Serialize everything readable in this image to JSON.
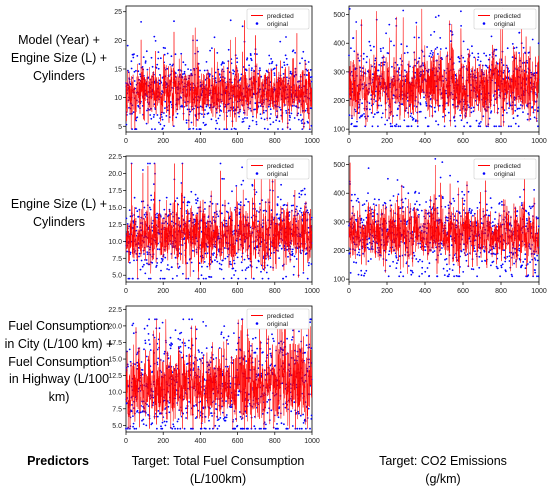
{
  "row_labels": [
    "Model (Year) + Engine Size (L) + Cylinders",
    "Engine Size (L) + Cylinders",
    "Fuel Consumption in City (L/100 km) + Fuel Consumption in Highway (L/100 km)"
  ],
  "bottom": {
    "predictors": "Predictors",
    "target_fuel": "Target: Total Fuel Consumption (L/100km)",
    "target_co2": "Target: CO2 Emissions (g/km)"
  },
  "legend": {
    "predicted": "predicted",
    "original": "original"
  },
  "colors": {
    "predicted": "#ff0000",
    "original": "#0000ff"
  },
  "chart_data": [
    {
      "type": "line",
      "id": "fuel-row1",
      "series_names": [
        "predicted",
        "original"
      ],
      "xlim": [
        0,
        1000
      ],
      "ylim": [
        4,
        26
      ],
      "xticks": [
        0,
        200,
        400,
        600,
        800,
        1000
      ],
      "yticks": [
        5,
        10,
        15,
        20,
        25
      ],
      "tick_labels_y": [
        "5",
        "10",
        "15",
        "20",
        "25"
      ],
      "n_points": 1000,
      "mean": 11,
      "spread": 2.4,
      "min": 4.5,
      "max": 23.5,
      "legend_position": "top-right",
      "grid": false
    },
    {
      "type": "line",
      "id": "co2-row1",
      "series_names": [
        "predicted",
        "original"
      ],
      "xlim": [
        0,
        1000
      ],
      "ylim": [
        90,
        530
      ],
      "xticks": [
        0,
        200,
        400,
        600,
        800,
        1000
      ],
      "yticks": [
        100,
        200,
        300,
        400,
        500
      ],
      "tick_labels_y": [
        "100",
        "200",
        "300",
        "400",
        "500"
      ],
      "n_points": 1000,
      "mean": 250,
      "spread": 55,
      "min": 110,
      "max": 520,
      "legend_position": "top-right",
      "grid": false
    },
    {
      "type": "line",
      "id": "fuel-row2",
      "series_names": [
        "predicted",
        "original"
      ],
      "xlim": [
        0,
        1000
      ],
      "ylim": [
        4,
        22.6
      ],
      "xticks": [
        0,
        200,
        400,
        600,
        800,
        1000
      ],
      "yticks": [
        5.0,
        7.5,
        10.0,
        12.5,
        15.0,
        17.5,
        20.0,
        22.5
      ],
      "tick_labels_y": [
        "5.0",
        "7.5",
        "10.0",
        "12.5",
        "15.0",
        "17.5",
        "20.0",
        "22.5"
      ],
      "n_points": 1000,
      "mean": 11,
      "spread": 2.3,
      "min": 4.5,
      "max": 21.5,
      "legend_position": "top-right",
      "grid": false
    },
    {
      "type": "line",
      "id": "co2-row2",
      "series_names": [
        "predicted",
        "original"
      ],
      "xlim": [
        0,
        1000
      ],
      "ylim": [
        90,
        530
      ],
      "xticks": [
        0,
        200,
        400,
        600,
        800,
        1000
      ],
      "yticks": [
        100,
        200,
        300,
        400,
        500
      ],
      "tick_labels_y": [
        "100",
        "200",
        "300",
        "400",
        "500"
      ],
      "n_points": 1000,
      "mean": 255,
      "spread": 50,
      "min": 110,
      "max": 520,
      "legend_position": "top-right",
      "grid": false
    },
    {
      "type": "line",
      "id": "fuel-row3",
      "series_names": [
        "predicted",
        "original"
      ],
      "xlim": [
        0,
        1000
      ],
      "ylim": [
        4,
        23
      ],
      "xticks": [
        0,
        200,
        400,
        600,
        800,
        1000
      ],
      "yticks": [
        5.0,
        7.5,
        10.0,
        12.5,
        15.0,
        17.5,
        20.0,
        22.5
      ],
      "tick_labels_y": [
        "5.0",
        "7.5",
        "10.0",
        "12.5",
        "15.0",
        "17.5",
        "20.0",
        "22.5"
      ],
      "n_points": 1000,
      "mean": 11,
      "spread": 3,
      "min": 4.5,
      "max": 21,
      "legend_position": "top-right",
      "grid": false
    }
  ]
}
